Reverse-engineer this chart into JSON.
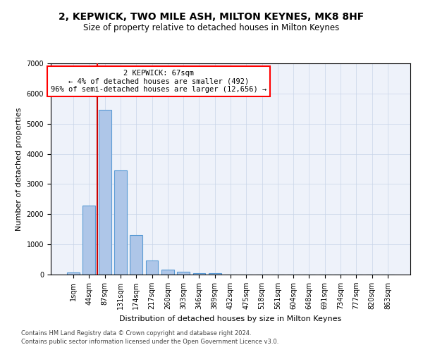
{
  "title1": "2, KEPWICK, TWO MILE ASH, MILTON KEYNES, MK8 8HF",
  "title2": "Size of property relative to detached houses in Milton Keynes",
  "xlabel": "Distribution of detached houses by size in Milton Keynes",
  "ylabel": "Number of detached properties",
  "footnote1": "Contains HM Land Registry data © Crown copyright and database right 2024.",
  "footnote2": "Contains public sector information licensed under the Open Government Licence v3.0.",
  "annotation_line1": "2 KEPWICK: 67sqm",
  "annotation_line2": "← 4% of detached houses are smaller (492)",
  "annotation_line3": "96% of semi-detached houses are larger (12,656) →",
  "bar_color": "#aec6e8",
  "bar_edge_color": "#5b9bd5",
  "vline_color": "#cc0000",
  "vline_x": 1.5,
  "ylim": [
    0,
    7000
  ],
  "yticks": [
    0,
    1000,
    2000,
    3000,
    4000,
    5000,
    6000,
    7000
  ],
  "categories": [
    "1sqm",
    "44sqm",
    "87sqm",
    "131sqm",
    "174sqm",
    "217sqm",
    "260sqm",
    "303sqm",
    "346sqm",
    "389sqm",
    "432sqm",
    "475sqm",
    "518sqm",
    "561sqm",
    "604sqm",
    "648sqm",
    "691sqm",
    "734sqm",
    "777sqm",
    "820sqm",
    "863sqm"
  ],
  "values": [
    75,
    2280,
    5470,
    3450,
    1310,
    460,
    155,
    90,
    55,
    38,
    0,
    0,
    0,
    0,
    0,
    0,
    0,
    0,
    0,
    0,
    0
  ],
  "bar_width": 0.8,
  "title1_fontsize": 10,
  "title2_fontsize": 8.5,
  "xlabel_fontsize": 8,
  "ylabel_fontsize": 8,
  "tick_fontsize": 7,
  "annotation_fontsize": 7.5,
  "footnote_fontsize": 6
}
